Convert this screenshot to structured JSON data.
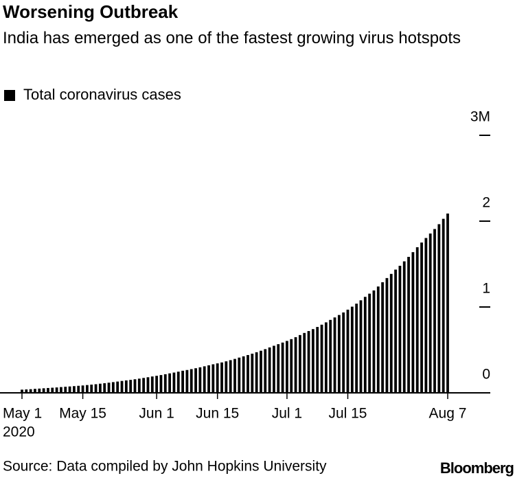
{
  "chart_data": {
    "type": "bar",
    "title": "Worsening Outbreak",
    "subtitle": "India has emerged as one of the fastest growing virus hotspots",
    "source": "Source: Data compiled by John Hopkins University",
    "brand": "Bloomberg",
    "x_sublabel": "2020",
    "categories": [
      "May 1",
      null,
      null,
      null,
      null,
      null,
      null,
      null,
      null,
      null,
      null,
      null,
      null,
      null,
      "May 15",
      null,
      null,
      null,
      null,
      null,
      null,
      null,
      null,
      null,
      null,
      null,
      null,
      null,
      null,
      null,
      null,
      "Jun 1",
      null,
      null,
      null,
      null,
      null,
      null,
      null,
      null,
      null,
      null,
      null,
      null,
      null,
      "Jun 15",
      null,
      null,
      null,
      null,
      null,
      null,
      null,
      null,
      null,
      null,
      null,
      null,
      null,
      null,
      null,
      "Jul 1",
      null,
      null,
      null,
      null,
      null,
      null,
      null,
      null,
      null,
      null,
      null,
      null,
      null,
      "Jul 15",
      null,
      null,
      null,
      null,
      null,
      null,
      null,
      null,
      null,
      null,
      null,
      null,
      null,
      null,
      null,
      null,
      null,
      null,
      null,
      null,
      null,
      null,
      "Aug 7"
    ],
    "series": [
      {
        "name": "Total coronavirus cases",
        "color": "#000000",
        "values": [
          37257,
          39699,
          42505,
          46437,
          49400,
          52987,
          56351,
          59695,
          62808,
          67161,
          70768,
          74292,
          78055,
          81997,
          85784,
          90648,
          95698,
          100328,
          106475,
          112028,
          118226,
          124794,
          131423,
          138536,
          144950,
          150793,
          158086,
          165386,
          173491,
          181827,
          190609,
          198370,
          207191,
          216824,
          226713,
          236184,
          246622,
          257486,
          265928,
          276146,
          286605,
          297535,
          308993,
          320922,
          332424,
          343091,
          354065,
          366946,
          380532,
          395048,
          410451,
          425282,
          440215,
          456183,
          473105,
          490401,
          508953,
          528859,
          548318,
          566840,
          585481,
          604641,
          625544,
          648315,
          673165,
          697413,
          719665,
          742417,
          767296,
          793802,
          820916,
          849553,
          878254,
          906752,
          936181,
          968876,
          1003832,
          1038716,
          1077781,
          1118043,
          1155191,
          1192915,
          1238635,
          1288108,
          1337024,
          1385522,
          1435453,
          1480073,
          1531669,
          1583792,
          1638870,
          1695988,
          1750723,
          1803695,
          1855745,
          1908254,
          1964536,
          2027074,
          2088611
        ]
      }
    ],
    "ylim": [
      0,
      3000000
    ],
    "yticks": [
      0,
      {
        "value": 1000000,
        "label": "1"
      },
      {
        "value": 2000000,
        "label": "2"
      },
      {
        "value": 3000000,
        "label": "3M"
      }
    ],
    "legend": "top-left"
  }
}
